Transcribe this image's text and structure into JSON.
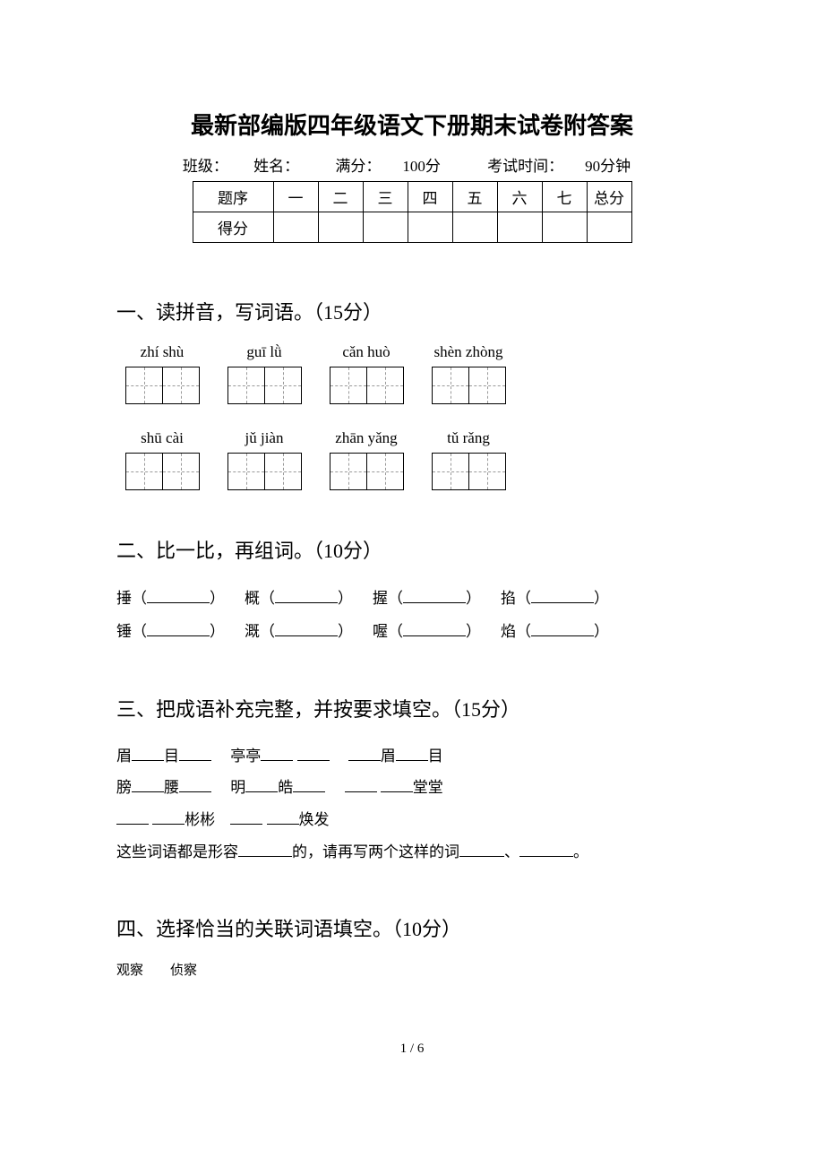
{
  "title": "最新部编版四年级语文下册期末试卷附答案",
  "info": {
    "class_label": "班级：",
    "name_label": "姓名：",
    "full_score_label": "满分：",
    "full_score_value": "100分",
    "time_label": "考试时间：",
    "time_value": "90分钟"
  },
  "score_table": {
    "header_first": "题序",
    "cols": [
      "一",
      "二",
      "三",
      "四",
      "五",
      "六",
      "七",
      "总分"
    ],
    "row2_first": "得分"
  },
  "q1": {
    "title": "一、读拼音，写词语。（15分）",
    "row1": [
      {
        "pinyin": "zhí shù",
        "boxes": 2
      },
      {
        "pinyin": "guī lǜ",
        "boxes": 2
      },
      {
        "pinyin": "cǎn huò",
        "boxes": 2
      },
      {
        "pinyin": "shèn zhòng",
        "boxes": 2
      }
    ],
    "row2": [
      {
        "pinyin": "shū cài",
        "boxes": 2
      },
      {
        "pinyin": "jǔ jiàn",
        "boxes": 2
      },
      {
        "pinyin": "zhān yǎng",
        "boxes": 2
      },
      {
        "pinyin": "tǔ rǎng",
        "boxes": 2
      }
    ]
  },
  "q2": {
    "title": "二、比一比，再组词。（10分）",
    "row1": [
      "捶",
      "概",
      "握",
      "掐"
    ],
    "row2": [
      "锤",
      "溉",
      "喔",
      "焰"
    ]
  },
  "q3": {
    "title": "三、把成语补充完整，并按要求填空。（15分）",
    "line1_parts": [
      "眉",
      "目",
      "　亭亭",
      "",
      "　",
      "眉",
      "目"
    ],
    "line2_parts": [
      "膀",
      "腰",
      "　明",
      "皓",
      "　",
      "",
      "堂堂"
    ],
    "line3_parts": [
      "",
      "",
      "彬彬　",
      "",
      "焕发"
    ],
    "line4_a": "这些词语都是形容",
    "line4_b": "的，请再写两个这样的词",
    "line4_c": "、",
    "line4_d": "。"
  },
  "q4": {
    "title": "四、选择恰当的关联词语填空。（10分）",
    "sub": "观察　　侦察"
  },
  "page_num": "1 / 6"
}
